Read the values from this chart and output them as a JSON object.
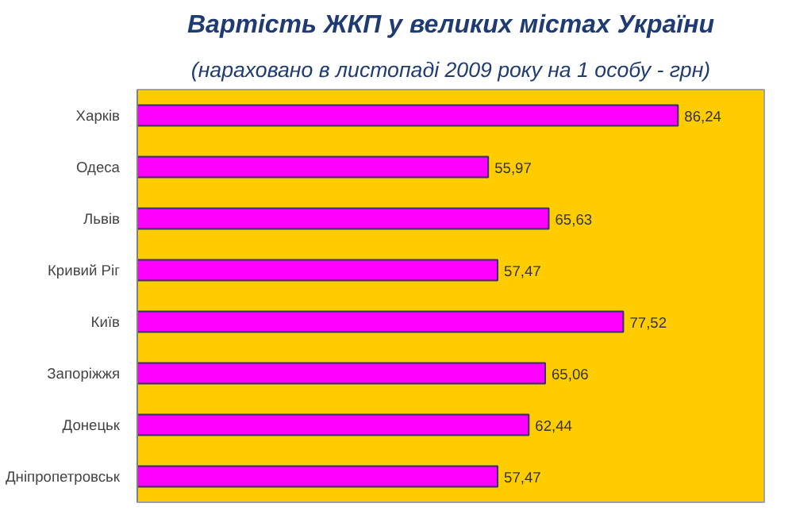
{
  "chart_data": {
    "type": "bar",
    "orientation": "horizontal",
    "title": "Вартість ЖКП у великих містах України",
    "subtitle": "(нараховано в листопаді 2009 року на 1 особу - грн)",
    "categories": [
      "Харків",
      "Одеса",
      "Львів",
      "Кривий Ріг",
      "Київ",
      "Запоріжжя",
      "Донецьк",
      "Дніпропетровськ"
    ],
    "values": [
      86.24,
      55.97,
      65.63,
      57.47,
      77.52,
      65.06,
      62.44,
      57.47
    ],
    "value_labels": [
      "86,24",
      "55,97",
      "65,63",
      "57,47",
      "77,52",
      "65,06",
      "62,44",
      "57,47"
    ],
    "color": "#ff00ff",
    "xlim": [
      0,
      100
    ],
    "grid": false
  }
}
